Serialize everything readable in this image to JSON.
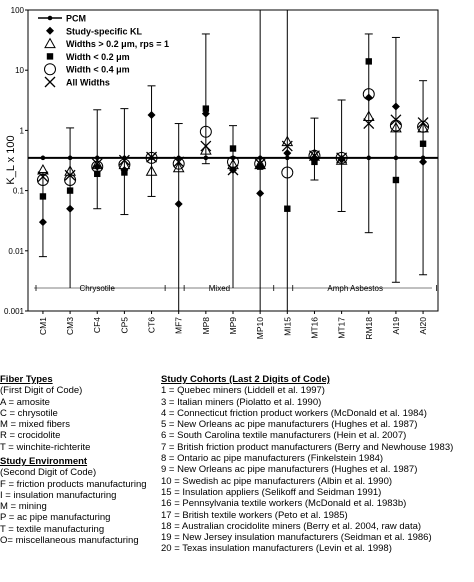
{
  "chart_data": {
    "type": "scatter",
    "y_scale": "log",
    "ylim": [
      0.001,
      100
    ],
    "ylabel": "K_L x 100",
    "yticks": [
      "100",
      "10",
      "1",
      "0.1",
      "0.01",
      "0.001"
    ],
    "categories": [
      "CM1",
      "CM3",
      "CF4",
      "CP5",
      "CT6",
      "MF7",
      "MP8",
      "MP9",
      "MP10",
      "MI15",
      "MT16",
      "MT17",
      "RM18",
      "AI19",
      "AI20"
    ],
    "pcm_line": 0.35,
    "legend": [
      {
        "label": "PCM",
        "marker": "line-dot"
      },
      {
        "label": "Study-specific KL",
        "marker": "diamond"
      },
      {
        "label": "Widths > 0.2 μm, rps = 1",
        "marker": "triangle"
      },
      {
        "label": "Width < 0.2 μm",
        "marker": "square"
      },
      {
        "label": "Width < 0.4 μm",
        "marker": "circle"
      },
      {
        "label": "All Widths",
        "marker": "x"
      }
    ],
    "series": [
      {
        "name": "Study-specific KL",
        "values": [
          0.03,
          0.05,
          0.25,
          0.22,
          1.8,
          0.06,
          1.9,
          0.22,
          0.09,
          0.42,
          0.35,
          0.33,
          3.5,
          2.5,
          0.3
        ],
        "ci_low": [
          0.008,
          null,
          0.05,
          0.04,
          0.08,
          0.001,
          0.28,
          null,
          0.001,
          0.001,
          0.15,
          0.045,
          0.02,
          0.003,
          0.004
        ],
        "ci_high": [
          0.2,
          1.1,
          2.2,
          2.3,
          5.5,
          1.3,
          40,
          1.2,
          100,
          100,
          1.6,
          3.2,
          40,
          35,
          6.7
        ]
      },
      {
        "name": "Widths > 0.2 μm, rps = 1",
        "values": [
          0.22,
          0.21,
          0.27,
          0.27,
          0.21,
          0.24,
          0.47,
          0.27,
          0.27,
          0.65,
          0.4,
          0.32,
          1.7,
          1.1,
          1.1
        ]
      },
      {
        "name": "Width < 0.2 μm",
        "values": [
          0.08,
          0.1,
          0.19,
          0.2,
          null,
          null,
          2.3,
          0.5,
          0.25,
          0.05,
          0.3,
          null,
          14,
          0.15,
          0.6
        ]
      },
      {
        "name": "Width < 0.4 μm",
        "values": [
          0.15,
          0.15,
          0.25,
          0.27,
          0.35,
          0.28,
          0.95,
          0.3,
          0.28,
          0.2,
          0.38,
          0.35,
          4.0,
          1.2,
          1.15
        ]
      },
      {
        "name": "All Widths",
        "values": [
          0.17,
          0.18,
          0.28,
          0.32,
          0.36,
          0.3,
          0.55,
          0.22,
          0.28,
          0.55,
          0.38,
          0.35,
          1.3,
          1.5,
          1.35
        ]
      }
    ],
    "fiber_groups": [
      {
        "label": "Chrysotile",
        "from": "CM1",
        "to": "CT6"
      },
      {
        "label": "Mixed",
        "from": "MF7",
        "to": "MP10"
      },
      {
        "label": "Amph Asbestos",
        "from": "MI15",
        "to": "AI20"
      }
    ]
  },
  "fiber_types": {
    "title": "Fiber Types",
    "lines": [
      "(First Digit of Code)",
      "A = amosite",
      "C = chrysotile",
      "M = mixed fibers",
      "R = crocidolite",
      "T = winchite-richterite"
    ]
  },
  "study_environment": {
    "title": "Study Environment",
    "lines": [
      "(Second Digit of Code)",
      "F = friction products manufacturing",
      "I = insulation manufacturing",
      "M = mining",
      "P = ac pipe manufacturing",
      "T = textile manufacturing",
      "O= miscellaneous manufacturing"
    ]
  },
  "study_cohorts": {
    "title": "Study Cohorts (Last 2 Digits of Code)",
    "lines": [
      " 1 = Quebec miners (Liddell et al. 1997)",
      " 3 = Italian miners (Piolatto et al. 1990)",
      " 4 = Connecticut friction product workers (McDonald et al. 1984)",
      " 5 = New Orleans ac pipe manufacturers (Hughes et al. 1987)",
      " 6 = South Carolina textile manufacturers (Hein et al. 2007)",
      " 7 = British friction product manufacturers (Berry and Newhouse 1983)",
      " 8 = Ontario ac pipe manufacturers (Finkelstein 1984)",
      " 9 = New Orleans ac pipe manufacturers (Hughes et al. 1987)",
      "10 = Swedish ac pipe manufacturers (Albin et al. 1990)",
      "15 = Insulation appliers (Selikoff and Seidman 1991)",
      "16 = Pennsylvania textile workers (McDonald et al. 1983b)",
      "17 = British textile workers (Peto et al. 1985)",
      "18 = Australian crocidolite miners (Berry et al. 2004, raw data)",
      "19 = New Jersey insulation manufacturers (Seidman et al. 1986)",
      "20 = Texas insulation manufacturers (Levin et al. 1998)"
    ]
  }
}
